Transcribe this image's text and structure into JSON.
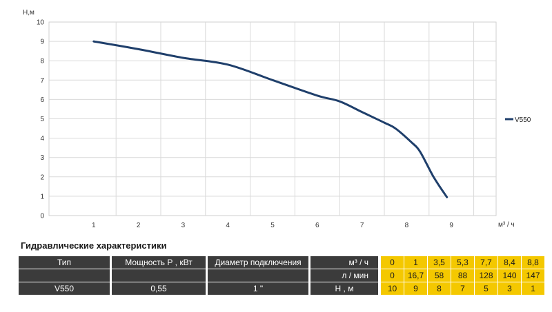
{
  "chart_data": {
    "type": "line",
    "ylabel": "Н,м",
    "xlabel": "м³ / ч",
    "xlim": [
      0,
      10
    ],
    "ylim": [
      0,
      10
    ],
    "x_ticks": [
      "1",
      "2",
      "3",
      "4",
      "5",
      "6",
      "7",
      "8",
      "9"
    ],
    "y_ticks": [
      "0",
      "1",
      "2",
      "3",
      "4",
      "5",
      "6",
      "7",
      "8",
      "9",
      "10"
    ],
    "grid": true,
    "legend": "right",
    "series": [
      {
        "name": "V550",
        "color": "#1f3f6b",
        "points": [
          {
            "x": 1,
            "y": 9.0
          },
          {
            "x": 2,
            "y": 8.6
          },
          {
            "x": 3,
            "y": 8.15
          },
          {
            "x": 4,
            "y": 7.8
          },
          {
            "x": 5,
            "y": 7.0
          },
          {
            "x": 6,
            "y": 6.2
          },
          {
            "x": 6.5,
            "y": 5.9
          },
          {
            "x": 7,
            "y": 5.35
          },
          {
            "x": 7.5,
            "y": 4.8
          },
          {
            "x": 7.75,
            "y": 4.5
          },
          {
            "x": 8.1,
            "y": 3.8
          },
          {
            "x": 8.3,
            "y": 3.3
          },
          {
            "x": 8.6,
            "y": 2.0
          },
          {
            "x": 8.9,
            "y": 0.95
          }
        ]
      }
    ]
  },
  "table": {
    "title": "Гидравлические характеристики",
    "headers": {
      "type": "Тип",
      "power": "Мощность Р , кВт",
      "diameter": "Диаметр подключения",
      "flow_m3": "м³ / ч",
      "flow_lmin": "л / мин",
      "head": "Н , м"
    },
    "row": {
      "type": "V550",
      "power": "0,55",
      "diameter": "1 \""
    },
    "flow_m3_values": [
      "0",
      "1",
      "3,5",
      "5,3",
      "7,7",
      "8,4",
      "8,8"
    ],
    "flow_lmin_values": [
      "0",
      "16,7",
      "58",
      "88",
      "128",
      "140",
      "147"
    ],
    "head_values": [
      "10",
      "9",
      "8",
      "7",
      "5",
      "3",
      "1"
    ],
    "colors": {
      "dark": "#3b3b3b",
      "accent": "#f4c800"
    }
  }
}
